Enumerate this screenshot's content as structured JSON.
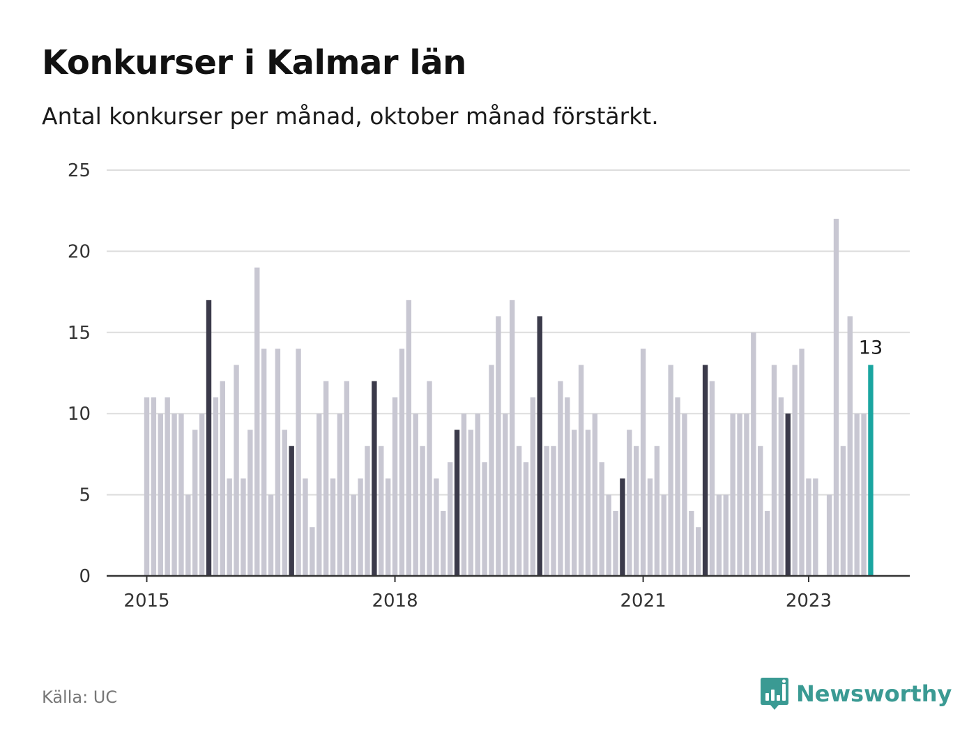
{
  "title": "Konkurser i Kalmar län",
  "subtitle": "Antal konkurser per månad, oktober månad förstärkt.",
  "source": "Källa: UC",
  "brand": "Newsworthy",
  "colors": {
    "regular": "#c8c7d2",
    "highlight": "#3b3a4a",
    "latest": "#1aa5a0",
    "brand": "#3a9a93",
    "grid": "#dddddd",
    "axis": "#333333"
  },
  "chart_data": {
    "type": "bar",
    "title": "Konkurser i Kalmar län",
    "subtitle": "Antal konkurser per månad, oktober månad förstärkt.",
    "xlabel": "",
    "ylabel": "",
    "ylim": [
      0,
      25
    ],
    "y_ticks": [
      0,
      5,
      10,
      15,
      20,
      25
    ],
    "grid": true,
    "start": "2015-01",
    "highlight_month": "oktober",
    "x_tick_labels": [
      {
        "label": "2015",
        "month": "2015-01"
      },
      {
        "label": "2018",
        "month": "2018-01"
      },
      {
        "label": "2021",
        "month": "2021-01"
      },
      {
        "label": "2023",
        "month": "2023-01"
      }
    ],
    "values": [
      11,
      11,
      10,
      11,
      10,
      10,
      5,
      9,
      10,
      17,
      11,
      12,
      6,
      13,
      6,
      9,
      19,
      14,
      5,
      14,
      9,
      8,
      14,
      6,
      3,
      10,
      12,
      6,
      10,
      12,
      5,
      6,
      8,
      12,
      8,
      6,
      11,
      14,
      17,
      10,
      8,
      12,
      6,
      4,
      7,
      9,
      10,
      9,
      10,
      7,
      13,
      16,
      10,
      17,
      8,
      7,
      11,
      16,
      8,
      8,
      12,
      11,
      9,
      13,
      9,
      10,
      7,
      5,
      4,
      6,
      9,
      8,
      14,
      6,
      8,
      5,
      13,
      11,
      10,
      4,
      3,
      13,
      12,
      5,
      5,
      10,
      10,
      10,
      15,
      8,
      4,
      13,
      11,
      10,
      13,
      14,
      6,
      6,
      0,
      5,
      22,
      8,
      16,
      10,
      10,
      13
    ],
    "last_value_label": "13"
  }
}
